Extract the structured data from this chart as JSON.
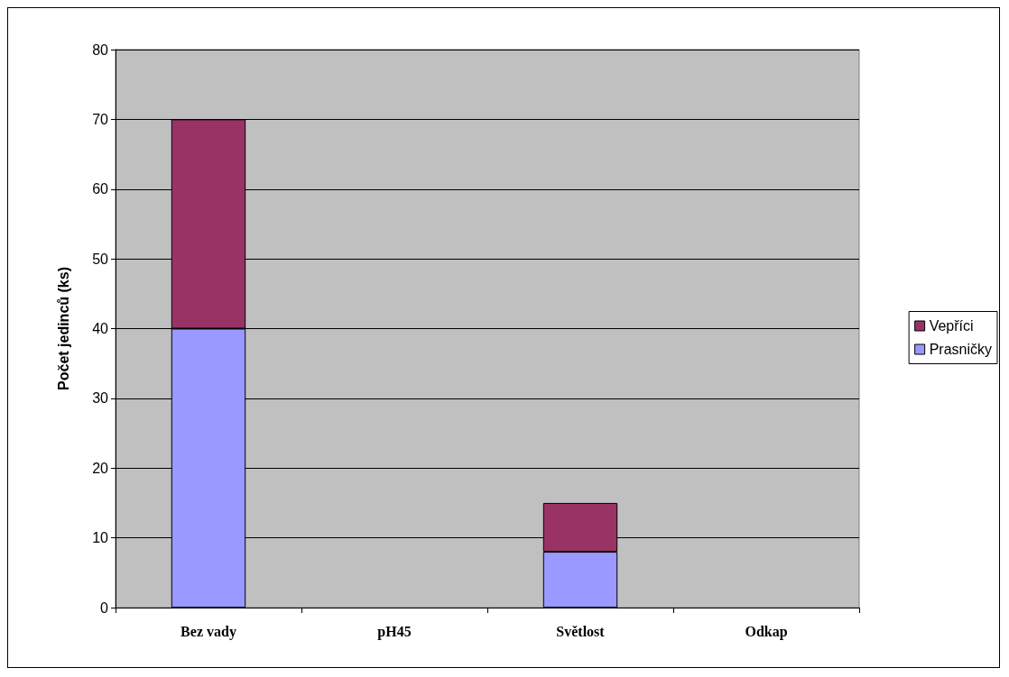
{
  "chart_data": {
    "type": "bar",
    "stacked": true,
    "ylabel": "Počet jedinců (ks)",
    "categories": [
      "Bez vady",
      "pH45",
      "Světlost",
      "Odkap"
    ],
    "series": [
      {
        "name": "Prasničky",
        "color": "#9999ff",
        "values": [
          40,
          null,
          8,
          null
        ]
      },
      {
        "name": "Vepříci",
        "color": "#993366",
        "values": [
          30,
          null,
          7,
          null
        ]
      }
    ],
    "ylim": [
      0,
      80
    ],
    "yticks": [
      0,
      10,
      20,
      30,
      40,
      50,
      60,
      70,
      80
    ],
    "grid": "y",
    "legend": "right"
  }
}
